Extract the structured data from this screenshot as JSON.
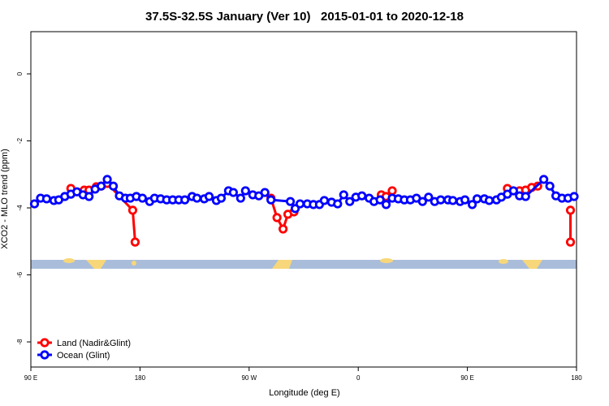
{
  "chart_data": {
    "type": "line",
    "title": "37.5S-32.5S January (Ver 10)   2015-01-01 to 2020-12-18",
    "x_label": "Longitude (deg E)",
    "y_label": "XCO2 - MLO trend (ppm)",
    "xlim": [
      90,
      540
    ],
    "ylim": [
      -8.75,
      1.26
    ],
    "xticks": [
      {
        "value": 90,
        "label": "90 E"
      },
      180,
      {
        "value": 270,
        "label": "90 W"
      },
      {
        "value": 360,
        "label": "0"
      },
      {
        "value": 450,
        "label": "90 E"
      },
      {
        "value": 540,
        "label": "180"
      }
    ],
    "yticks": [
      0,
      -2,
      -4,
      -6,
      -8
    ],
    "legend": "bottom-left",
    "series": [
      {
        "name": "Land (Nadir&Glint)",
        "color": "#ff0000",
        "x": [
          123,
          134,
          138,
          144,
          148,
          153,
          174,
          176,
          250,
          288,
          293,
          298,
          302,
          307,
          340,
          379,
          383,
          388,
          450,
          483,
          493,
          498,
          503,
          508,
          525,
          535,
          535
        ],
        "values": [
          -3.42,
          -3.47,
          -3.47,
          -3.37,
          -3.35,
          -3.27,
          -4.07,
          -5.02,
          null,
          -3.71,
          -4.29,
          -4.63,
          -4.19,
          -4.12,
          null,
          -3.61,
          -3.66,
          -3.49,
          null,
          -3.42,
          -3.49,
          -3.47,
          -3.39,
          -3.35,
          null,
          -4.07,
          -5.02
        ]
      },
      {
        "name": "Ocean (Glint)",
        "color": "#0000ff",
        "x": [
          93,
          98,
          103,
          109,
          113,
          118,
          123,
          128,
          133,
          138,
          143,
          148,
          153,
          158,
          163,
          168,
          172,
          177,
          182,
          188,
          192,
          197,
          202,
          207,
          212,
          217,
          223,
          227,
          233,
          237,
          243,
          247,
          253,
          257,
          263,
          267,
          273,
          278,
          283,
          288,
          304,
          308,
          312,
          318,
          323,
          328,
          332,
          338,
          343,
          348,
          353,
          358,
          363,
          369,
          373,
          378,
          383,
          388,
          393,
          398,
          403,
          408,
          413,
          418,
          423,
          428,
          434,
          438,
          444,
          448,
          454,
          458,
          464,
          468,
          474,
          478,
          483,
          488,
          493,
          498,
          513,
          518,
          523,
          528,
          533,
          538
        ],
        "values": [
          -3.88,
          -3.71,
          -3.73,
          -3.78,
          -3.76,
          -3.66,
          -3.59,
          -3.52,
          -3.61,
          -3.66,
          -3.44,
          -3.35,
          -3.15,
          -3.35,
          -3.64,
          -3.71,
          -3.71,
          -3.66,
          -3.71,
          -3.81,
          -3.71,
          -3.73,
          -3.76,
          -3.76,
          -3.76,
          -3.76,
          -3.66,
          -3.71,
          -3.73,
          -3.66,
          -3.78,
          -3.71,
          -3.49,
          -3.54,
          -3.71,
          -3.49,
          -3.61,
          -3.64,
          -3.54,
          -3.76,
          -3.81,
          -4.02,
          -3.88,
          -3.88,
          -3.9,
          -3.9,
          -3.78,
          -3.83,
          -3.88,
          -3.61,
          -3.81,
          -3.68,
          -3.64,
          -3.71,
          -3.81,
          -3.76,
          -3.9,
          -3.71,
          -3.73,
          -3.76,
          -3.76,
          -3.71,
          -3.81,
          -3.68,
          -3.81,
          -3.76,
          -3.76,
          -3.78,
          -3.81,
          -3.76,
          -3.9,
          -3.73,
          -3.73,
          -3.78,
          -3.76,
          -3.68,
          -3.59,
          -3.49,
          -3.64,
          -3.66,
          -3.15,
          -3.35,
          -3.64,
          -3.71,
          -3.71,
          -3.66
        ]
      }
    ]
  }
}
